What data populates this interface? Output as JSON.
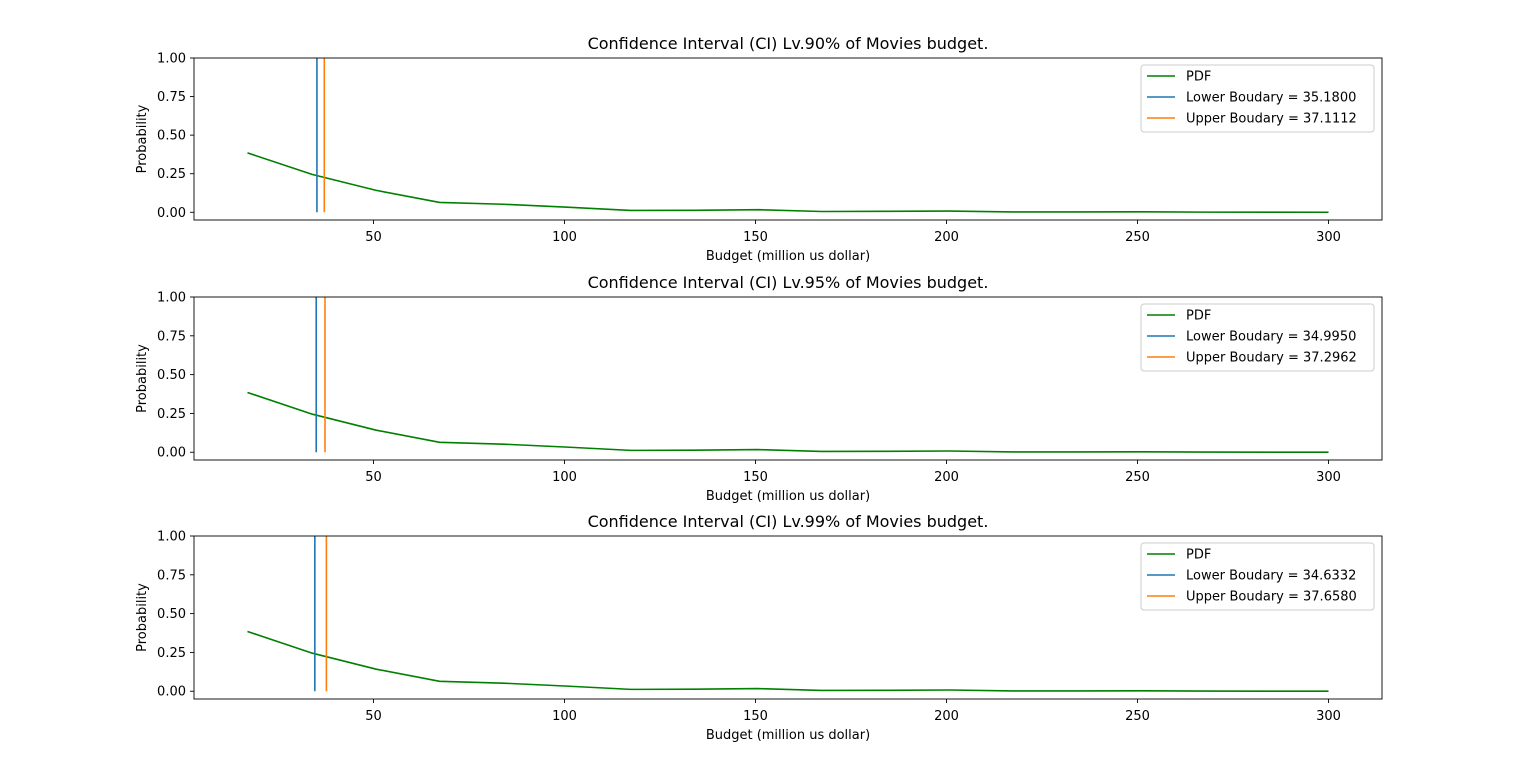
{
  "chart_data": [
    {
      "type": "line",
      "title": "Confidence Interval (CI) Lv.90% of Movies budget.",
      "xlabel": "Budget (million us dollar)",
      "ylabel": "Probability",
      "xlim": [
        3,
        314
      ],
      "ylim": [
        -0.05,
        1.0
      ],
      "xticks": [
        50,
        100,
        150,
        200,
        250,
        300
      ],
      "yticks": [
        "0.00",
        "0.25",
        "0.50",
        "0.75",
        "1.00"
      ],
      "legend_position": "upper-right",
      "grid": false,
      "series": [
        {
          "name": "PDF",
          "color": "#008000",
          "x": [
            17,
            34,
            50.7,
            67.3,
            84,
            100.7,
            117.3,
            134,
            150.7,
            167.3,
            184,
            200.7,
            217.3,
            234,
            250.7,
            267.3,
            284,
            300
          ],
          "y": [
            0.385,
            0.245,
            0.142,
            0.064,
            0.052,
            0.033,
            0.012,
            0.013,
            0.017,
            0.005,
            0.006,
            0.008,
            0.002,
            0.002,
            0.003,
            0.001,
            0.0005,
            0.0003
          ]
        }
      ],
      "vlines": [
        {
          "name": "Lower Boudary = 35.1800",
          "x": 35.18,
          "ymin": 0,
          "ymax": 1.0,
          "color": "#1f77b4"
        },
        {
          "name": "Upper Boudary = 37.1112",
          "x": 37.1112,
          "ymin": 0,
          "ymax": 1.0,
          "color": "#ff7f0e"
        }
      ]
    },
    {
      "type": "line",
      "title": "Confidence Interval (CI) Lv.95% of Movies budget.",
      "xlabel": "Budget (million us dollar)",
      "ylabel": "Probability",
      "xlim": [
        3,
        314
      ],
      "ylim": [
        -0.05,
        1.0
      ],
      "xticks": [
        50,
        100,
        150,
        200,
        250,
        300
      ],
      "yticks": [
        "0.00",
        "0.25",
        "0.50",
        "0.75",
        "1.00"
      ],
      "legend_position": "upper-right",
      "grid": false,
      "series": [
        {
          "name": "PDF",
          "color": "#008000",
          "x": [
            17,
            34,
            50.7,
            67.3,
            84,
            100.7,
            117.3,
            134,
            150.7,
            167.3,
            184,
            200.7,
            217.3,
            234,
            250.7,
            267.3,
            284,
            300
          ],
          "y": [
            0.385,
            0.245,
            0.142,
            0.064,
            0.052,
            0.033,
            0.012,
            0.013,
            0.017,
            0.005,
            0.006,
            0.008,
            0.002,
            0.002,
            0.003,
            0.001,
            0.0005,
            0.0003
          ]
        }
      ],
      "vlines": [
        {
          "name": "Lower Boudary = 34.9950",
          "x": 34.995,
          "ymin": 0,
          "ymax": 1.0,
          "color": "#1f77b4"
        },
        {
          "name": "Upper Boudary = 37.2962",
          "x": 37.2962,
          "ymin": 0,
          "ymax": 1.0,
          "color": "#ff7f0e"
        }
      ]
    },
    {
      "type": "line",
      "title": "Confidence Interval (CI) Lv.99% of Movies budget.",
      "xlabel": "Budget (million us dollar)",
      "ylabel": "Probability",
      "xlim": [
        3,
        314
      ],
      "ylim": [
        -0.05,
        1.0
      ],
      "xticks": [
        50,
        100,
        150,
        200,
        250,
        300
      ],
      "yticks": [
        "0.00",
        "0.25",
        "0.50",
        "0.75",
        "1.00"
      ],
      "legend_position": "upper-right",
      "grid": false,
      "series": [
        {
          "name": "PDF",
          "color": "#008000",
          "x": [
            17,
            34,
            50.7,
            67.3,
            84,
            100.7,
            117.3,
            134,
            150.7,
            167.3,
            184,
            200.7,
            217.3,
            234,
            250.7,
            267.3,
            284,
            300
          ],
          "y": [
            0.385,
            0.245,
            0.142,
            0.064,
            0.052,
            0.033,
            0.012,
            0.013,
            0.017,
            0.005,
            0.006,
            0.008,
            0.002,
            0.002,
            0.003,
            0.001,
            0.0005,
            0.0003
          ]
        }
      ],
      "vlines": [
        {
          "name": "Lower Boudary = 34.6332",
          "x": 34.6332,
          "ymin": 0,
          "ymax": 1.0,
          "color": "#1f77b4"
        },
        {
          "name": "Upper Boudary = 37.6580",
          "x": 37.658,
          "ymin": 0,
          "ymax": 1.0,
          "color": "#ff7f0e"
        }
      ]
    }
  ]
}
